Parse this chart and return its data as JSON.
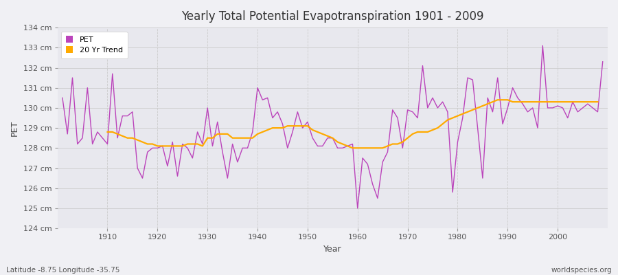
{
  "title": "Yearly Total Potential Evapotranspiration 1901 - 2009",
  "ylabel": "PET",
  "xlabel": "Year",
  "footer_left": "Latitude -8.75 Longitude -35.75",
  "footer_right": "worldspecies.org",
  "pet_color": "#bb44bb",
  "trend_color": "#ffaa00",
  "bg_color": "#f0f0f4",
  "plot_bg_color": "#e8e8ee",
  "ylim": [
    124,
    134
  ],
  "yticks": [
    124,
    125,
    126,
    127,
    128,
    129,
    130,
    131,
    132,
    133,
    134
  ],
  "years": [
    1901,
    1902,
    1903,
    1904,
    1905,
    1906,
    1907,
    1908,
    1909,
    1910,
    1911,
    1912,
    1913,
    1914,
    1915,
    1916,
    1917,
    1918,
    1919,
    1920,
    1921,
    1922,
    1923,
    1924,
    1925,
    1926,
    1927,
    1928,
    1929,
    1930,
    1931,
    1932,
    1933,
    1934,
    1935,
    1936,
    1937,
    1938,
    1939,
    1940,
    1941,
    1942,
    1943,
    1944,
    1945,
    1946,
    1947,
    1948,
    1949,
    1950,
    1951,
    1952,
    1953,
    1954,
    1955,
    1956,
    1957,
    1958,
    1959,
    1960,
    1961,
    1962,
    1963,
    1964,
    1965,
    1966,
    1967,
    1968,
    1969,
    1970,
    1971,
    1972,
    1973,
    1974,
    1975,
    1976,
    1977,
    1978,
    1979,
    1980,
    1981,
    1982,
    1983,
    1984,
    1985,
    1986,
    1987,
    1988,
    1989,
    1990,
    1991,
    1992,
    1993,
    1994,
    1995,
    1996,
    1997,
    1998,
    1999,
    2000,
    2001,
    2002,
    2003,
    2004,
    2005,
    2006,
    2007,
    2008,
    2009
  ],
  "pet_values": [
    130.5,
    128.7,
    131.5,
    128.2,
    128.5,
    131.0,
    128.2,
    128.8,
    128.5,
    128.2,
    131.7,
    128.5,
    129.6,
    129.6,
    129.8,
    127.0,
    126.5,
    127.8,
    128.0,
    128.0,
    128.1,
    127.1,
    128.3,
    126.6,
    128.2,
    128.0,
    127.5,
    128.8,
    128.2,
    130.0,
    128.1,
    129.3,
    127.8,
    126.5,
    128.2,
    127.3,
    128.0,
    128.0,
    128.8,
    131.0,
    130.4,
    130.5,
    129.5,
    129.8,
    129.2,
    128.0,
    128.8,
    129.8,
    129.0,
    129.3,
    128.5,
    128.1,
    128.1,
    128.5,
    128.5,
    128.0,
    128.0,
    128.1,
    128.2,
    125.0,
    127.5,
    127.2,
    126.2,
    125.5,
    127.3,
    127.8,
    129.9,
    129.5,
    128.0,
    129.9,
    129.8,
    129.5,
    132.1,
    130.0,
    130.5,
    130.0,
    130.3,
    129.8,
    125.8,
    128.3,
    129.5,
    131.5,
    131.4,
    129.0,
    126.5,
    130.5,
    129.8,
    131.5,
    129.2,
    130.0,
    131.0,
    130.5,
    130.2,
    129.8,
    130.0,
    129.0,
    133.1,
    130.0,
    130.0,
    130.1,
    130.0,
    129.5,
    130.3,
    129.8,
    130.0,
    130.2,
    130.0,
    129.8,
    132.3
  ],
  "trend_values": [
    null,
    null,
    null,
    null,
    null,
    null,
    null,
    null,
    null,
    128.8,
    128.8,
    128.7,
    128.6,
    128.5,
    128.5,
    128.4,
    128.3,
    128.2,
    128.2,
    128.1,
    128.1,
    128.1,
    128.1,
    128.1,
    128.1,
    128.2,
    128.2,
    128.2,
    128.1,
    128.5,
    128.5,
    128.7,
    128.7,
    128.7,
    128.5,
    128.5,
    128.5,
    128.5,
    128.5,
    128.7,
    128.8,
    128.9,
    129.0,
    129.0,
    129.0,
    129.1,
    129.1,
    129.1,
    129.1,
    129.1,
    128.9,
    128.8,
    128.7,
    128.6,
    128.5,
    128.3,
    128.2,
    128.1,
    128.0,
    128.0,
    128.0,
    128.0,
    128.0,
    128.0,
    128.0,
    128.1,
    128.2,
    128.2,
    128.3,
    128.5,
    128.7,
    128.8,
    128.8,
    128.8,
    128.9,
    129.0,
    129.2,
    129.4,
    129.5,
    129.6,
    129.7,
    129.8,
    129.9,
    130.0,
    130.1,
    130.2,
    130.3,
    130.4,
    130.4,
    130.4,
    130.3,
    130.3,
    130.3,
    130.3,
    130.3,
    130.3,
    130.3,
    130.3,
    130.3,
    130.3,
    130.3,
    130.3,
    130.3,
    130.3,
    130.3,
    130.3,
    130.3,
    130.3
  ]
}
